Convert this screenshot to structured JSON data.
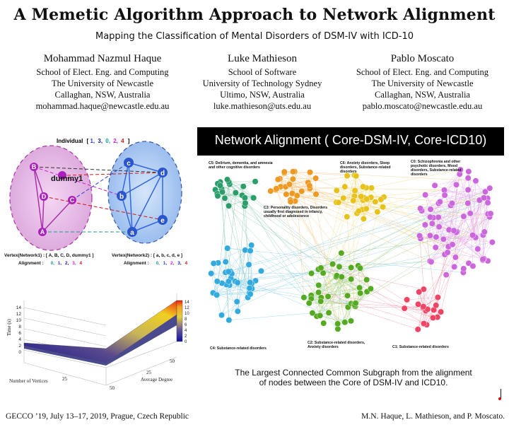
{
  "header": {
    "title": "A Memetic Algorithm Approach to Network Alignment",
    "subtitle": "Mapping the Classification of Mental Disorders of DSM-IV with ICD-10"
  },
  "authors": [
    {
      "name": "Mohammad Nazmul Haque",
      "line1": "School of Elect. Eng. and Computing",
      "line2": "The University of Newcastle",
      "line3": "Callaghan, NSW, Australia",
      "email": "mohammad.haque@newcastle.edu.au"
    },
    {
      "name": "Luke Mathieson",
      "line1": "School of Software",
      "line2": "University of Technology Sydney",
      "line3": "Ultimo, NSW, Australia",
      "email": "luke.mathieson@uts.edu.au"
    },
    {
      "name": "Pablo Moscato",
      "line1": "School of Elect. Eng. and Computing",
      "line2": "The University of Newcastle",
      "line3": "Callaghan, NSW, Australia",
      "email": "pablo.moscato@newcastle.edu.au"
    }
  ],
  "individual": {
    "label": "Individual",
    "open": "[",
    "values": [
      "1,",
      "3,",
      "0,",
      "2,",
      "4"
    ],
    "close": "]",
    "colors": [
      "#2b3fd6",
      "#1a1aa0",
      "#19a090",
      "#cc22cc",
      "#d01818"
    ]
  },
  "net1": {
    "nodes": [
      "B",
      "D",
      "C",
      "A"
    ],
    "dummy": "dummy1"
  },
  "net2": {
    "nodes": [
      "c",
      "d",
      "b",
      "e",
      "a"
    ]
  },
  "vertex1": {
    "label": "Vertex(Network1) : [ A, B, C, D, dummy1 ]",
    "align_label": "Alignment :",
    "align": [
      "0,",
      "1,",
      "2,",
      "3,",
      "4"
    ]
  },
  "vertex2": {
    "label": "Vertex(Network2) : [ a, b, c, d, e ]",
    "align_label": "Alignment :",
    "align": [
      "0,",
      "1,",
      "2,",
      "3,",
      "4"
    ]
  },
  "surface": {
    "zlabel": "Time (s)",
    "xlabel": "Number of Vertices",
    "ylabel": "Average Degree",
    "zticks": [
      "0",
      "2",
      "4",
      "6",
      "8",
      "10",
      "12",
      "14"
    ],
    "xticks": [
      "25",
      "50"
    ],
    "yticks": [
      "25",
      "50"
    ],
    "cbar_ticks": [
      "14",
      "12",
      "10",
      "8",
      "6",
      "4",
      "2",
      "0"
    ]
  },
  "network_alignment": {
    "title": "Network Alignment ( Core-DSM-IV, Core-ICD10)",
    "clusters": [
      {
        "id": "C5",
        "label1": "C5: Delirium, dementia, and amnesia",
        "label2": "and other cognitive disorders",
        "color": "#2a9d6a"
      },
      {
        "id": "C6",
        "label1": "C6: Anxiety disorders, Sleep",
        "label2": "disorders, Substance-related",
        "label3": "disorders",
        "color": "#e6c21a"
      },
      {
        "id": "C0",
        "label1": "C0: Schizophrenia and other",
        "label2": "psychotic disorders, Mood",
        "label3": "disorders, Substance-related",
        "label4": "disorders",
        "color": "#cc66dd"
      },
      {
        "id": "C3",
        "label1": "C3: Personality disorders, Disorders",
        "label2": "usually first diagnosed in infancy,",
        "label3": "childhood or adolescence",
        "color": "#ee9922"
      },
      {
        "id": "C4",
        "label1": "C4: Substance-related disorders",
        "color": "#33aadd"
      },
      {
        "id": "C2",
        "label1": "C2: Substance-related disorders,",
        "label2": "Anxiety disorders",
        "color": "#55aa22"
      },
      {
        "id": "C1",
        "label1": "C1: Substance-related disorders",
        "color": "#ee4466"
      }
    ],
    "caption1": "The Largest Connected Common Subgraph from the alignment",
    "caption2": "of nodes between the Core of DSM-IV and ICD10."
  },
  "footer": {
    "left": "GECCO ’19, July 13–17, 2019, Prague, Czech Republic",
    "right": "M.N. Haque, L. Mathieson, and P. Moscato."
  }
}
